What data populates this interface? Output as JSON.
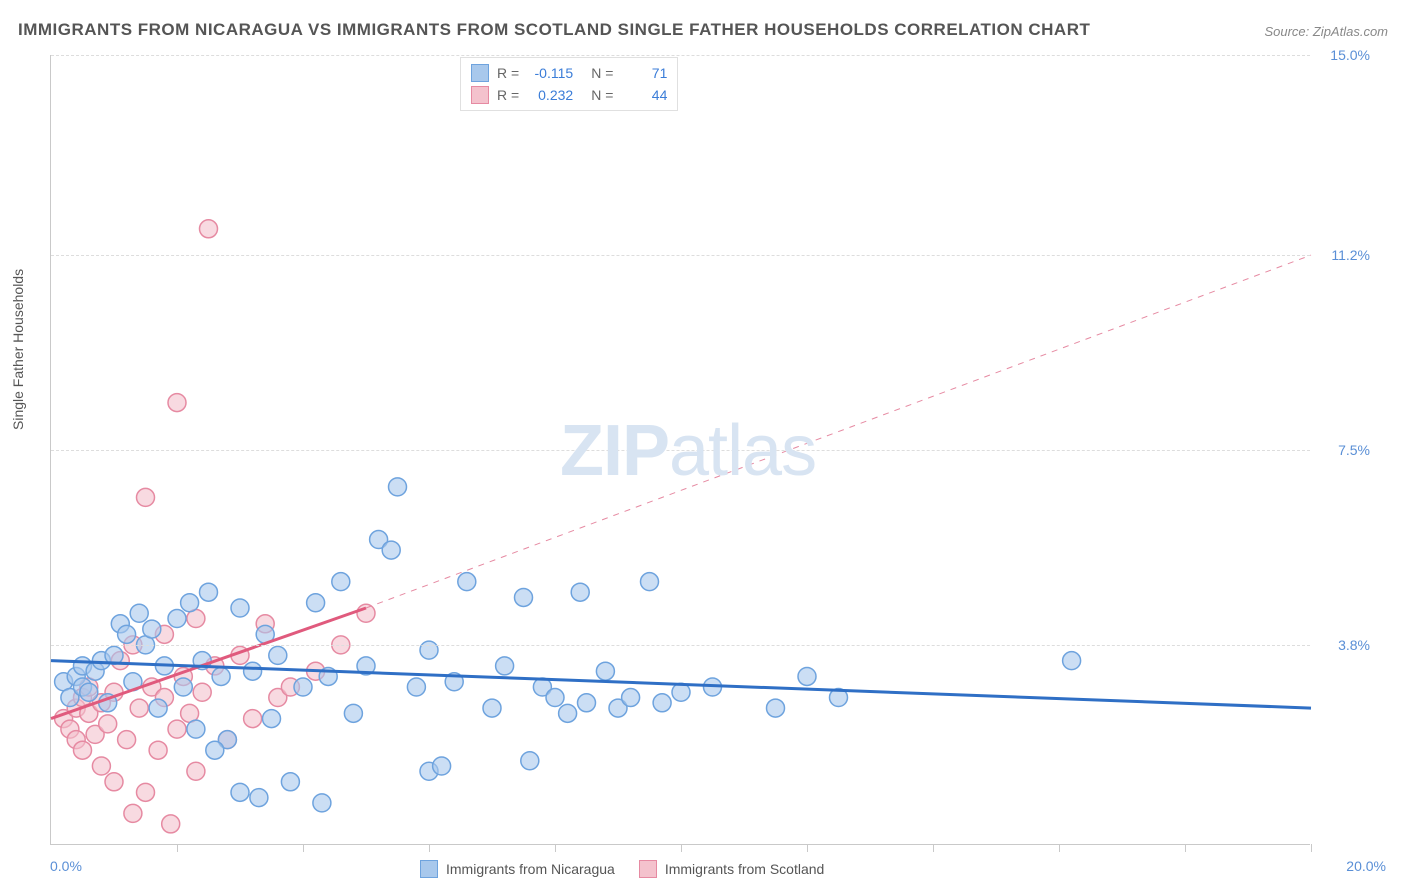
{
  "chart": {
    "type": "scatter",
    "title": "IMMIGRANTS FROM NICARAGUA VS IMMIGRANTS FROM SCOTLAND SINGLE FATHER HOUSEHOLDS CORRELATION CHART",
    "source": "Source: ZipAtlas.com",
    "yaxis_label": "Single Father Households",
    "background_color": "#ffffff",
    "grid_color": "#dddddd",
    "axis_color": "#c9c9c9",
    "title_color": "#555555",
    "title_fontsize": 17,
    "label_fontsize": 14,
    "xlim": [
      0,
      20
    ],
    "ylim": [
      0,
      15
    ],
    "x_start_label": "0.0%",
    "x_end_label": "20.0%",
    "x_ticks_at": [
      2,
      4,
      6,
      8,
      10,
      12,
      14,
      16,
      18,
      20
    ],
    "y_gridlines": [
      {
        "value": 3.8,
        "label": "3.8%",
        "color": "#5a8fd6"
      },
      {
        "value": 7.5,
        "label": "7.5%",
        "color": "#5a8fd6"
      },
      {
        "value": 11.2,
        "label": "11.2%",
        "color": "#5a8fd6"
      },
      {
        "value": 15.0,
        "label": "15.0%",
        "color": "#5a8fd6"
      }
    ],
    "watermark": {
      "bold": "ZIP",
      "rest": "atlas"
    },
    "legend": {
      "series": [
        {
          "name": "Immigrants from Nicaragua",
          "fill": "#a8c8ec",
          "stroke": "#6ea3de",
          "R_label": "R =",
          "R": "-0.115",
          "N_label": "N =",
          "N": "71"
        },
        {
          "name": "Immigrants from Scotland",
          "fill": "#f4c2cd",
          "stroke": "#e68aa2",
          "R_label": "R =",
          "R": "0.232",
          "N_label": "N =",
          "N": "44"
        }
      ]
    },
    "series": {
      "nicaragua": {
        "color_fill": "rgba(168,200,236,0.6)",
        "color_stroke": "#6ea3de",
        "marker_radius": 9,
        "trend": {
          "x1": 0,
          "y1": 3.5,
          "x2": 20,
          "y2": 2.6,
          "color": "#2f6fc5",
          "width": 3,
          "dash": "none"
        },
        "points": [
          [
            0.2,
            3.1
          ],
          [
            0.3,
            2.8
          ],
          [
            0.4,
            3.2
          ],
          [
            0.5,
            3.4
          ],
          [
            0.5,
            3.0
          ],
          [
            0.6,
            2.9
          ],
          [
            0.7,
            3.3
          ],
          [
            0.8,
            3.5
          ],
          [
            0.9,
            2.7
          ],
          [
            1.0,
            3.6
          ],
          [
            1.1,
            4.2
          ],
          [
            1.2,
            4.0
          ],
          [
            1.3,
            3.1
          ],
          [
            1.4,
            4.4
          ],
          [
            1.5,
            3.8
          ],
          [
            1.6,
            4.1
          ],
          [
            1.7,
            2.6
          ],
          [
            1.8,
            3.4
          ],
          [
            2.0,
            4.3
          ],
          [
            2.1,
            3.0
          ],
          [
            2.2,
            4.6
          ],
          [
            2.3,
            2.2
          ],
          [
            2.4,
            3.5
          ],
          [
            2.5,
            4.8
          ],
          [
            2.7,
            3.2
          ],
          [
            2.8,
            2.0
          ],
          [
            3.0,
            4.5
          ],
          [
            3.0,
            1.0
          ],
          [
            3.2,
            3.3
          ],
          [
            3.4,
            4.0
          ],
          [
            3.5,
            2.4
          ],
          [
            3.6,
            3.6
          ],
          [
            3.8,
            1.2
          ],
          [
            4.0,
            3.0
          ],
          [
            4.2,
            4.6
          ],
          [
            4.4,
            3.2
          ],
          [
            4.6,
            5.0
          ],
          [
            4.8,
            2.5
          ],
          [
            5.0,
            3.4
          ],
          [
            5.2,
            5.8
          ],
          [
            5.4,
            5.6
          ],
          [
            5.5,
            6.8
          ],
          [
            5.8,
            3.0
          ],
          [
            6.0,
            1.4
          ],
          [
            6.0,
            3.7
          ],
          [
            6.2,
            1.5
          ],
          [
            6.4,
            3.1
          ],
          [
            6.6,
            5.0
          ],
          [
            7.0,
            2.6
          ],
          [
            7.2,
            3.4
          ],
          [
            7.5,
            4.7
          ],
          [
            7.6,
            1.6
          ],
          [
            7.8,
            3.0
          ],
          [
            8.0,
            2.8
          ],
          [
            8.2,
            2.5
          ],
          [
            8.4,
            4.8
          ],
          [
            8.5,
            2.7
          ],
          [
            8.8,
            3.3
          ],
          [
            9.0,
            2.6
          ],
          [
            9.2,
            2.8
          ],
          [
            9.5,
            5.0
          ],
          [
            9.7,
            2.7
          ],
          [
            10.0,
            2.9
          ],
          [
            10.5,
            3.0
          ],
          [
            11.5,
            2.6
          ],
          [
            12.0,
            3.2
          ],
          [
            12.5,
            2.8
          ],
          [
            16.2,
            3.5
          ],
          [
            4.3,
            0.8
          ],
          [
            3.3,
            0.9
          ],
          [
            2.6,
            1.8
          ]
        ]
      },
      "scotland": {
        "color_fill": "rgba(244,194,205,0.6)",
        "color_stroke": "#e68aa2",
        "marker_radius": 9,
        "trend_solid": {
          "x1": 0,
          "y1": 2.4,
          "x2": 5.0,
          "y2": 4.5,
          "color": "#e05a7d",
          "width": 3
        },
        "trend_dash": {
          "x1": 5.0,
          "y1": 4.5,
          "x2": 20,
          "y2": 11.2,
          "color": "#e68aa2",
          "width": 1,
          "dash": "6,6"
        },
        "points": [
          [
            0.2,
            2.4
          ],
          [
            0.3,
            2.2
          ],
          [
            0.4,
            2.6
          ],
          [
            0.4,
            2.0
          ],
          [
            0.5,
            2.8
          ],
          [
            0.5,
            1.8
          ],
          [
            0.6,
            2.5
          ],
          [
            0.6,
            3.0
          ],
          [
            0.7,
            2.1
          ],
          [
            0.8,
            2.7
          ],
          [
            0.8,
            1.5
          ],
          [
            0.9,
            2.3
          ],
          [
            1.0,
            2.9
          ],
          [
            1.0,
            1.2
          ],
          [
            1.1,
            3.5
          ],
          [
            1.2,
            2.0
          ],
          [
            1.3,
            0.6
          ],
          [
            1.3,
            3.8
          ],
          [
            1.4,
            2.6
          ],
          [
            1.5,
            1.0
          ],
          [
            1.5,
            6.6
          ],
          [
            1.6,
            3.0
          ],
          [
            1.7,
            1.8
          ],
          [
            1.8,
            2.8
          ],
          [
            1.8,
            4.0
          ],
          [
            1.9,
            0.4
          ],
          [
            2.0,
            2.2
          ],
          [
            2.0,
            8.4
          ],
          [
            2.1,
            3.2
          ],
          [
            2.2,
            2.5
          ],
          [
            2.3,
            1.4
          ],
          [
            2.3,
            4.3
          ],
          [
            2.4,
            2.9
          ],
          [
            2.5,
            11.7
          ],
          [
            2.6,
            3.4
          ],
          [
            2.8,
            2.0
          ],
          [
            3.0,
            3.6
          ],
          [
            3.2,
            2.4
          ],
          [
            3.4,
            4.2
          ],
          [
            3.6,
            2.8
          ],
          [
            3.8,
            3.0
          ],
          [
            4.2,
            3.3
          ],
          [
            4.6,
            3.8
          ],
          [
            5.0,
            4.4
          ]
        ]
      }
    }
  }
}
